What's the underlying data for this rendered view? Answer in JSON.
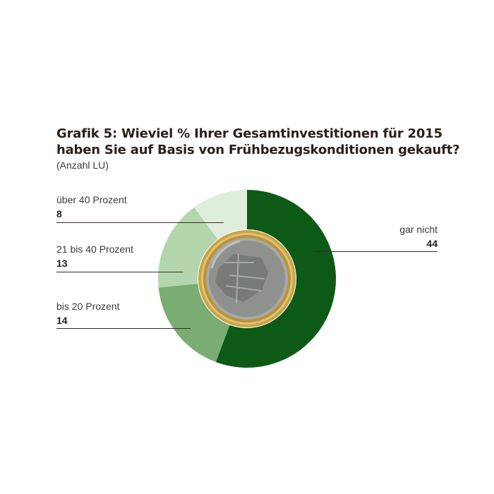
{
  "chart_data": {
    "type": "pie",
    "title": "Grafik 5: Wieviel % Ihrer Gesamtinvestitionen für 2015 haben Sie auf Basis von Frühbezugskonditionen gekauft?",
    "subtitle": "(Anzahl LU)",
    "donut": true,
    "start": "top",
    "direction": "clockwise",
    "slices": [
      {
        "label": "gar nicht",
        "value": 44,
        "value_text": "44",
        "color": "#0d5a17"
      },
      {
        "label": "bis 20 Prozent",
        "value": 14,
        "value_text": "14",
        "color": "#7aad72"
      },
      {
        "label": "21 bis 40 Prozent",
        "value": 13,
        "value_text": "13",
        "color": "#b3d6ac"
      },
      {
        "label": "über 40 Prozent",
        "value": 8,
        "value_text": "8",
        "color": "#dfeedb"
      }
    ],
    "center_image": "euro-coin"
  }
}
